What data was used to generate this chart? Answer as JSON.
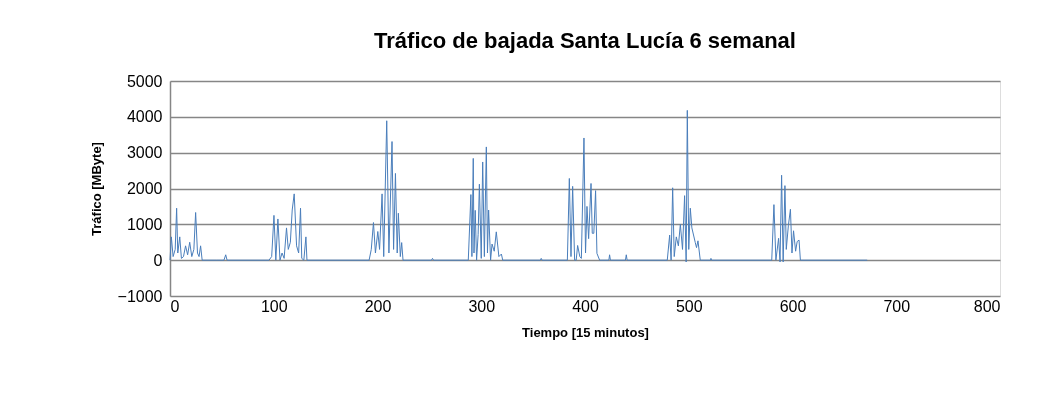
{
  "chart_data": {
    "type": "line",
    "title": "Tráfico de bajada Santa Lucía 6 semanal",
    "xlabel": "Tiempo [15 minutos]",
    "ylabel": "Tráfico [MByte]",
    "xlim": [
      0,
      800
    ],
    "xticks": [
      0,
      100,
      200,
      300,
      400,
      500,
      600,
      700,
      800
    ],
    "ylim": [
      -1000,
      5000
    ],
    "yticks": [
      -1000,
      0,
      1000,
      2000,
      3000,
      4000,
      5000
    ],
    "grid": "y",
    "marker": "none",
    "line_style": "solid",
    "series": [
      {
        "color": "#4a7ebb",
        "x": [
          0,
          1.3,
          3,
          5,
          6.4,
          7.5,
          9.4,
          11,
          13,
          15,
          17,
          19,
          21,
          23,
          24.7,
          26.5,
          28,
          29.5,
          31,
          45,
          52,
          53.7,
          55,
          95.4,
          98,
          100.2,
          102,
          104,
          106,
          108,
          110,
          112.3,
          114,
          116,
          117.8,
          119.7,
          122,
          124,
          125.8,
          127,
          129,
          131,
          132,
          191.9,
          194,
          196.1,
          198,
          200.3,
          202,
          204.4,
          206,
          208.9,
          211,
          214,
          215.5,
          217.3,
          219,
          220.1,
          222,
          223.3,
          224.6,
          252,
          253,
          254,
          287.5,
          290,
          291,
          292.3,
          293,
          294.2,
          295.5,
          297,
          298.2,
          300,
          301.4,
          303,
          304.9,
          306,
          307.1,
          309,
          310.4,
          312.5,
          314.5,
          317,
          319.4,
          320.7,
          357,
          357.8,
          358.6,
          383,
          384.9,
          386.5,
          388.1,
          390,
          391.5,
          392.9,
          395,
          396.5,
          399,
          400.5,
          401.9,
          403.5,
          405.8,
          407,
          408.5,
          410.2,
          411.5,
          414.1,
          423,
          423.7,
          424.5,
          439,
          439.8,
          440.6,
          479.3,
          481.6,
          483,
          484.5,
          486,
          488,
          490,
          491.9,
          494,
          496,
          497.5,
          498.6,
          500,
          501.5,
          503,
          506.3,
          507.5,
          508.9,
          511.1,
          521,
          521.4,
          522,
          580,
          582.1,
          584,
          586.6,
          588,
          589.5,
          591,
          592.7,
          594,
          596,
          598,
          599.5,
          601,
          603,
          604.5,
          606.3,
          607.6,
          672
        ],
        "values": [
          0,
          650,
          100,
          300,
          1450,
          200,
          650,
          50,
          100,
          400,
          150,
          500,
          100,
          300,
          1330,
          200,
          100,
          400,
          0,
          0,
          0,
          150,
          0,
          0,
          100,
          1250,
          0,
          1150,
          0,
          200,
          50,
          900,
          300,
          500,
          1400,
          1850,
          400,
          200,
          1450,
          50,
          0,
          650,
          0,
          0,
          300,
          1050,
          200,
          800,
          300,
          1850,
          100,
          3890,
          200,
          3310,
          300,
          2420,
          200,
          1310,
          100,
          490,
          0,
          0,
          50,
          0,
          0,
          1830,
          100,
          2840,
          200,
          1390,
          0,
          720,
          2120,
          50,
          2740,
          100,
          3160,
          200,
          1400,
          0,
          450,
          250,
          790,
          100,
          170,
          0,
          0,
          50,
          0,
          0,
          2280,
          100,
          2060,
          0,
          0,
          410,
          100,
          50,
          3410,
          200,
          1500,
          600,
          2140,
          750,
          750,
          1940,
          190,
          0,
          0,
          150,
          0,
          0,
          150,
          0,
          0,
          700,
          0,
          2020,
          100,
          650,
          400,
          1000,
          300,
          1800,
          -50,
          4180,
          300,
          1450,
          900,
          490,
          350,
          540,
          0,
          0,
          50,
          0,
          0,
          1550,
          0,
          610,
          -50,
          2370,
          -50,
          2080,
          300,
          960,
          1420,
          200,
          820,
          250,
          520,
          560,
          0,
          0
        ]
      }
    ]
  }
}
